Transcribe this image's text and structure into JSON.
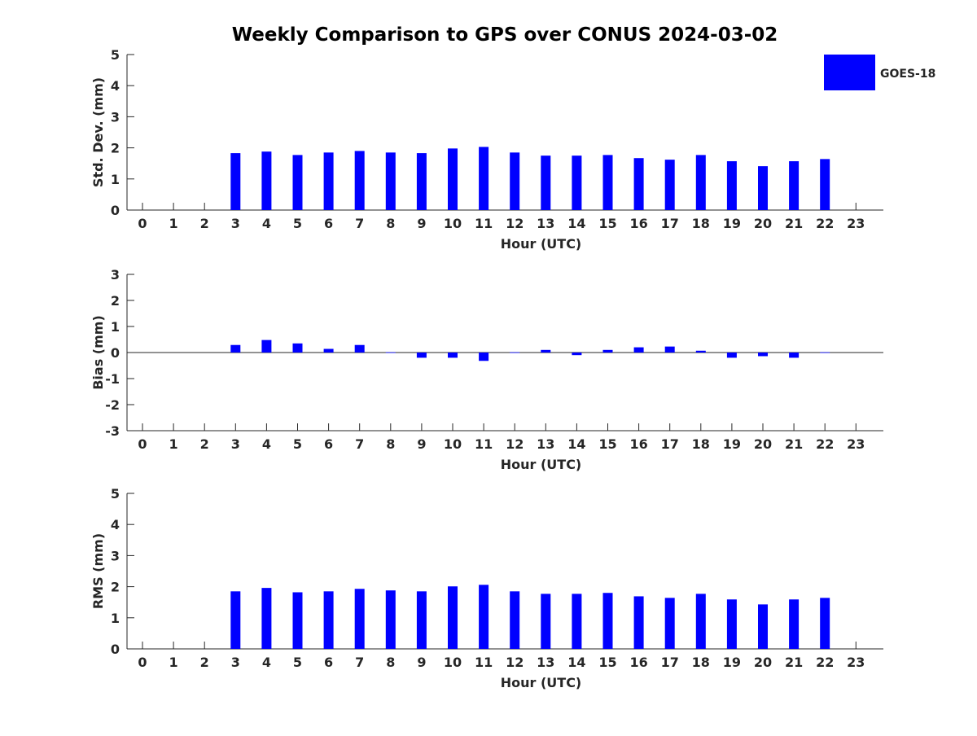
{
  "chart_data": [
    {
      "type": "bar",
      "title": "Weekly Comparison to GPS over CONUS 2024-03-02",
      "xlabel": "Hour (UTC)",
      "ylabel": "Std. Dev. (mm)",
      "ylim": [
        0,
        5
      ],
      "yticks": [
        0,
        1,
        2,
        3,
        4,
        5
      ],
      "xticks": [
        0,
        1,
        2,
        3,
        4,
        5,
        6,
        7,
        8,
        9,
        10,
        11,
        12,
        13,
        14,
        15,
        16,
        17,
        18,
        19,
        20,
        21,
        22,
        23
      ],
      "legend": {
        "entries": [
          "GOES-18"
        ],
        "placement": "top-right"
      },
      "series": [
        {
          "name": "GOES-18",
          "color": "#0000ff",
          "x": [
            3,
            4,
            5,
            6,
            7,
            8,
            9,
            10,
            11,
            12,
            13,
            14,
            15,
            16,
            17,
            18,
            19,
            20,
            21,
            22
          ],
          "values": [
            1.83,
            1.88,
            1.77,
            1.85,
            1.9,
            1.85,
            1.83,
            1.98,
            2.03,
            1.85,
            1.75,
            1.75,
            1.77,
            1.67,
            1.62,
            1.77,
            1.57,
            1.41,
            1.57,
            1.64
          ]
        }
      ]
    },
    {
      "type": "bar",
      "xlabel": "Hour (UTC)",
      "ylabel": "Bias (mm)",
      "ylim": [
        -3,
        3
      ],
      "yticks": [
        -3,
        -2,
        -1,
        0,
        1,
        2,
        3
      ],
      "xticks": [
        0,
        1,
        2,
        3,
        4,
        5,
        6,
        7,
        8,
        9,
        10,
        11,
        12,
        13,
        14,
        15,
        16,
        17,
        18,
        19,
        20,
        21,
        22,
        23
      ],
      "zero_line": true,
      "series": [
        {
          "name": "GOES-18",
          "color": "#0000ff",
          "x": [
            3,
            4,
            5,
            6,
            7,
            8,
            9,
            10,
            11,
            12,
            13,
            14,
            15,
            16,
            17,
            18,
            19,
            20,
            21,
            22
          ],
          "values": [
            0.29,
            0.48,
            0.35,
            0.14,
            0.29,
            0.01,
            -0.2,
            -0.2,
            -0.32,
            0.01,
            0.1,
            -0.1,
            0.1,
            0.2,
            0.23,
            0.07,
            -0.2,
            -0.14,
            -0.2,
            0.01
          ]
        }
      ]
    },
    {
      "type": "bar",
      "xlabel": "Hour (UTC)",
      "ylabel": "RMS (mm)",
      "ylim": [
        0,
        5
      ],
      "yticks": [
        0,
        1,
        2,
        3,
        4,
        5
      ],
      "xticks": [
        0,
        1,
        2,
        3,
        4,
        5,
        6,
        7,
        8,
        9,
        10,
        11,
        12,
        13,
        14,
        15,
        16,
        17,
        18,
        19,
        20,
        21,
        22,
        23
      ],
      "series": [
        {
          "name": "GOES-18",
          "color": "#0000ff",
          "x": [
            3,
            4,
            5,
            6,
            7,
            8,
            9,
            10,
            11,
            12,
            13,
            14,
            15,
            16,
            17,
            18,
            19,
            20,
            21,
            22
          ],
          "values": [
            1.85,
            1.96,
            1.82,
            1.85,
            1.93,
            1.88,
            1.85,
            2.01,
            2.06,
            1.85,
            1.77,
            1.77,
            1.8,
            1.69,
            1.64,
            1.77,
            1.59,
            1.43,
            1.59,
            1.64
          ]
        }
      ]
    }
  ]
}
